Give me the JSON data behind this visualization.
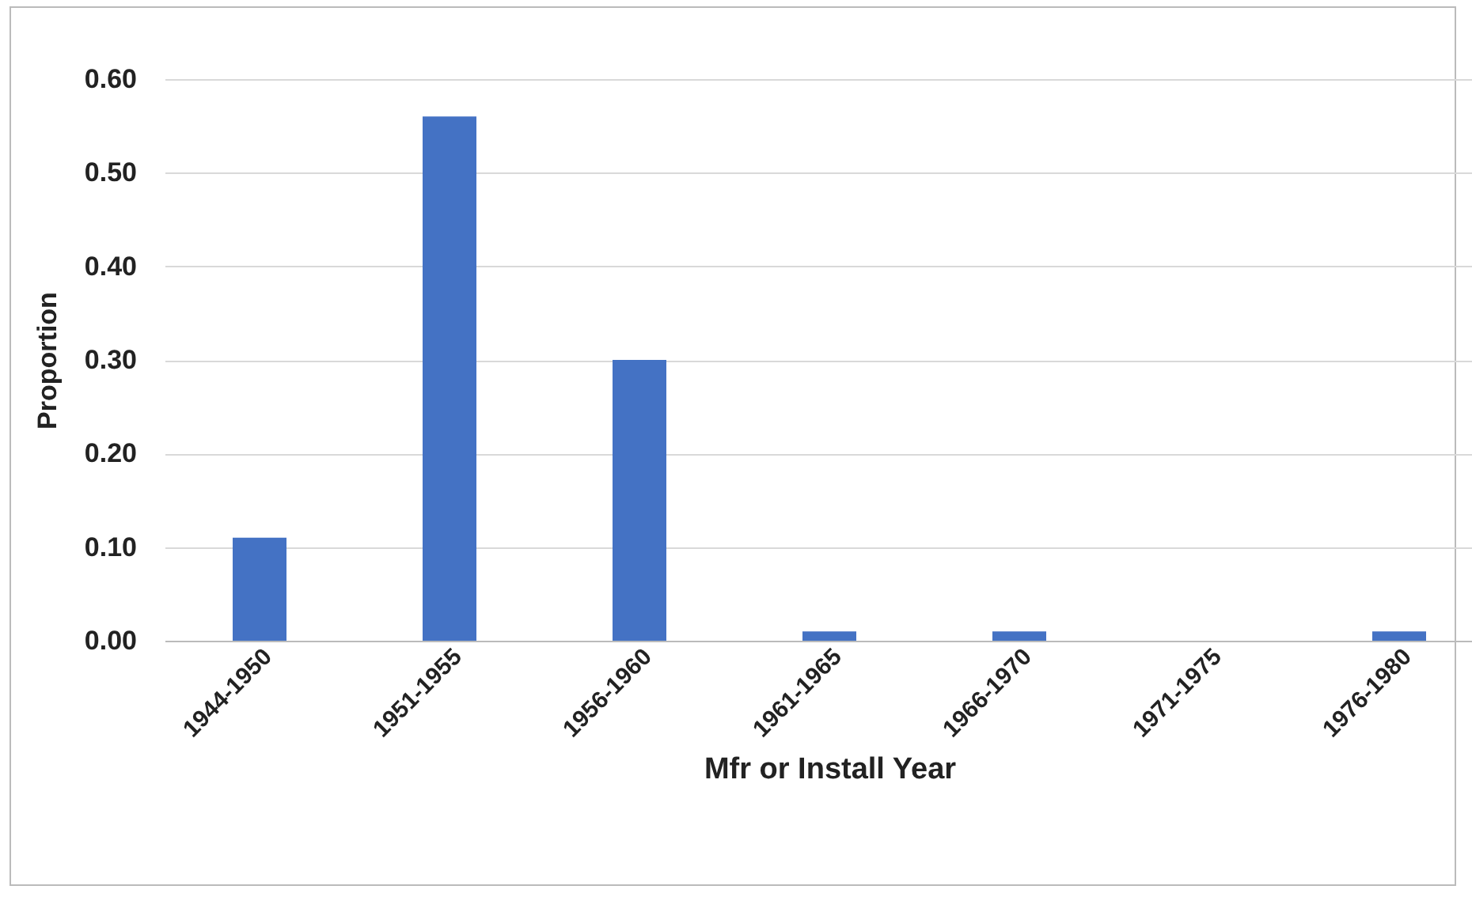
{
  "chart_data": {
    "type": "bar",
    "xlabel": "Mfr or Install Year",
    "ylabel": "Proportion",
    "categories": [
      "1944-1950",
      "1951-1955",
      "1956-1960",
      "1961-1965",
      "1966-1970",
      "1971-1975",
      "1976-1980"
    ],
    "values": [
      0.11,
      0.56,
      0.3,
      0.01,
      0.01,
      0,
      0.01
    ],
    "color": "#4472c4",
    "ylim": [
      0,
      0.6
    ],
    "yticks": [
      {
        "value": 0,
        "label": "0.00"
      },
      {
        "value": 0.1,
        "label": "0.10"
      },
      {
        "value": 0.2,
        "label": "0.20"
      },
      {
        "value": 0.3,
        "label": "0.30"
      },
      {
        "value": 0.4,
        "label": "0.40"
      },
      {
        "value": 0.5,
        "label": "0.50"
      },
      {
        "value": 0.6,
        "label": "0.60"
      }
    ],
    "grid": "y"
  }
}
